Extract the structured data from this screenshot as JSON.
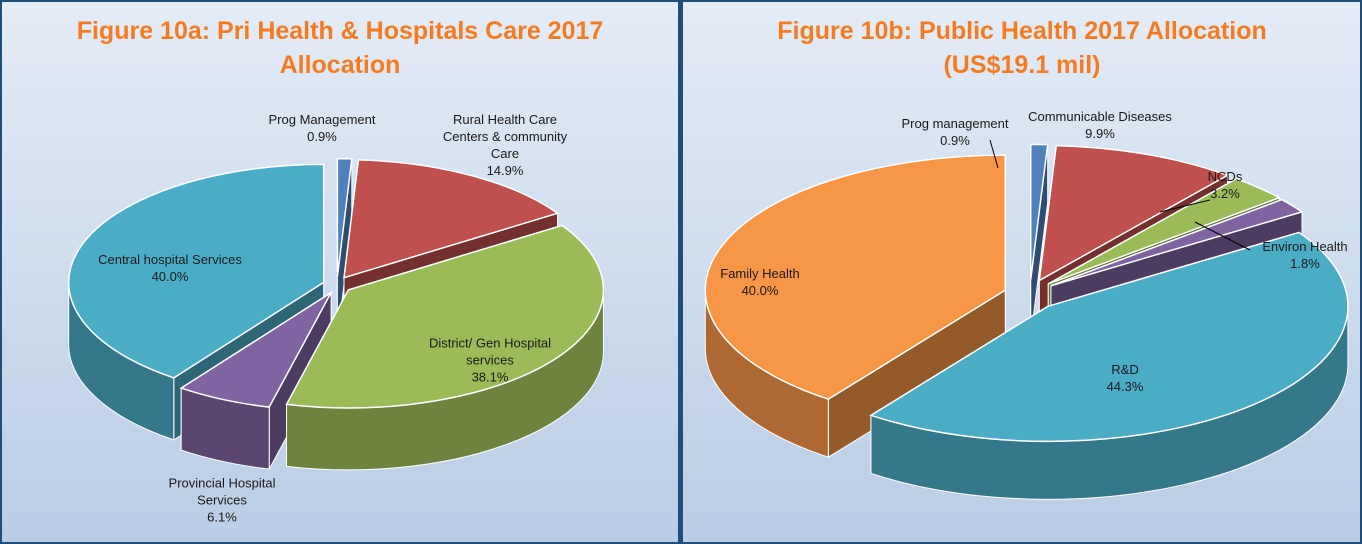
{
  "chart_data": [
    {
      "type": "pie",
      "title": "Figure 10a: Pri Health & Hospitals Care 2017 Allocation",
      "categories": [
        "Prog Management",
        "Rural Health Care Centers & community Care",
        "District/ Gen Hospital services",
        "Provincial Hospital Services",
        "Central hospital Services"
      ],
      "values": [
        0.9,
        14.9,
        38.1,
        6.1,
        40.0
      ],
      "value_labels": [
        "0.9%",
        "14.9%",
        "38.1%",
        "6.1%",
        "40.0%"
      ],
      "colors": [
        "#4f81bd",
        "#c0504d",
        "#9bbb59",
        "#8064a2",
        "#4bacc6"
      ]
    },
    {
      "type": "pie",
      "title": "Figure 10b: Public Health 2017 Allocation (US$19.1 mil)",
      "categories": [
        "Prog management",
        "Communicable Diseases",
        "NCDs",
        "Environ Health",
        "R&D",
        "Family Health"
      ],
      "values": [
        0.9,
        9.9,
        3.2,
        1.8,
        44.3,
        40.0
      ],
      "value_labels": [
        "0.9%",
        "9.9%",
        "3.2%",
        "1.8%",
        "44.3%",
        "40.0%"
      ],
      "colors": [
        "#4f81bd",
        "#c0504d",
        "#9bbb59",
        "#8064a2",
        "#4bacc6",
        "#f79646"
      ]
    }
  ]
}
